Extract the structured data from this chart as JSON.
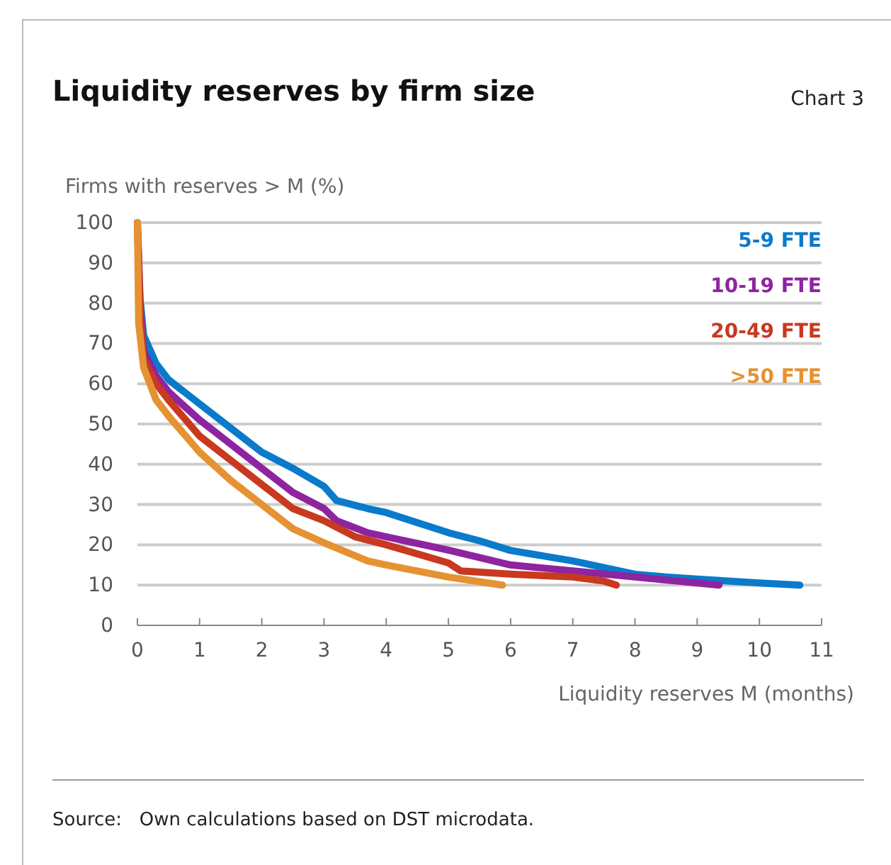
{
  "chart_data": {
    "type": "line",
    "title": "Liquidity reserves by firm size",
    "subtitle": "Chart 3",
    "ylabel": "Firms with reserves > M (%)",
    "xlabel": "Liquidity reserves M (months)",
    "xlim": [
      0,
      11
    ],
    "xticks": [
      0,
      1,
      2,
      3,
      4,
      5,
      6,
      7,
      8,
      9,
      10,
      11
    ],
    "ylim": [
      0,
      100
    ],
    "yticks": [
      0,
      10,
      20,
      30,
      40,
      50,
      60,
      70,
      80,
      90,
      100
    ],
    "grid": "y",
    "legend": "top right",
    "line_style": "solid",
    "marker": "none",
    "series": [
      {
        "name": "5-9 FTE",
        "color": "#0a7acb",
        "x": [
          0.05,
          0.1,
          0.3,
          0.5,
          1,
          1.5,
          2,
          2.5,
          3,
          3.2,
          3.7,
          4,
          5,
          5.5,
          6,
          7,
          8,
          8.5,
          9,
          10,
          10.65
        ],
        "values": [
          80,
          72,
          65,
          61,
          55,
          49,
          43,
          39,
          34.5,
          31,
          29,
          28,
          23,
          21,
          18.6,
          16,
          12.7,
          12,
          11.5,
          10.5,
          10
        ]
      },
      {
        "name": "10-19 FTE",
        "color": "#8e24a0",
        "x": [
          0,
          0.05,
          0.1,
          0.3,
          0.5,
          1,
          1.5,
          2,
          2.5,
          3,
          3.2,
          3.7,
          4,
          5,
          6,
          7,
          8,
          9,
          9.35
        ],
        "values": [
          100,
          78,
          68,
          62,
          58,
          51,
          45,
          39,
          33,
          29,
          26,
          23,
          22,
          18.7,
          15,
          13.5,
          12,
          10.5,
          10
        ]
      },
      {
        "name": "20-49 FTE",
        "color": "#c8391f",
        "x": [
          0,
          0.05,
          0.1,
          0.3,
          0.5,
          1,
          1.5,
          2,
          2.5,
          3,
          3.5,
          4,
          5,
          5.2,
          6,
          7,
          7.5,
          7.7
        ],
        "values": [
          100,
          75,
          66,
          60,
          56,
          47,
          41,
          35,
          29,
          26,
          22,
          20,
          15.5,
          13.5,
          12.7,
          12,
          11,
          10
        ]
      },
      {
        "name": ">50 FTE",
        "color": "#e59232",
        "x": [
          0,
          0.02,
          0.1,
          0.3,
          0.5,
          1,
          1.5,
          2,
          2.5,
          3,
          3.7,
          4,
          4.5,
          5,
          5.87
        ],
        "values": [
          100,
          75,
          64,
          56,
          52,
          43,
          36,
          30,
          24,
          20.5,
          16,
          15,
          13.5,
          12,
          10
        ]
      }
    ],
    "annotations": [
      "Source:   Own calculations based on DST microdata."
    ]
  }
}
